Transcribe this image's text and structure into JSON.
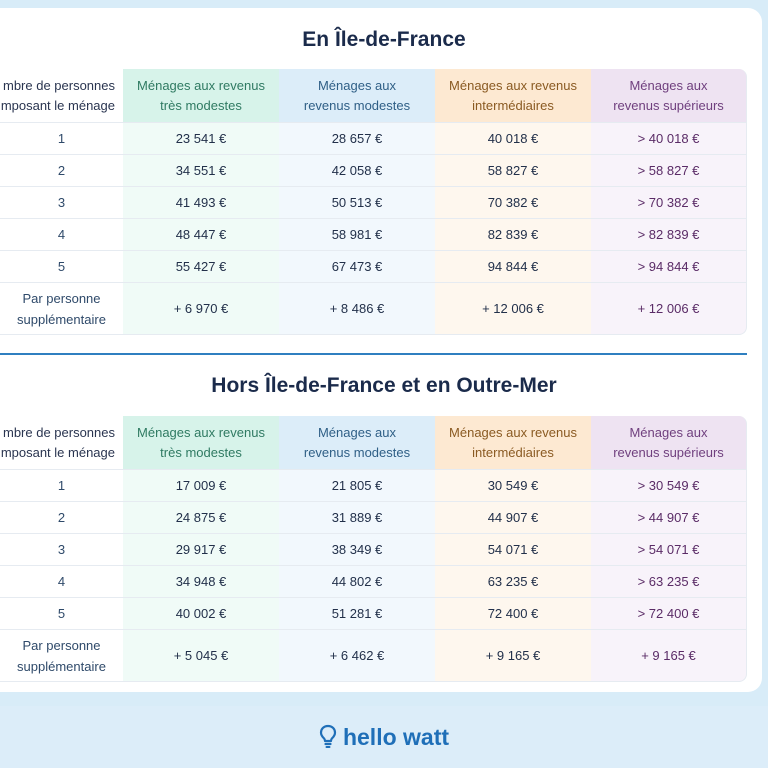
{
  "section1": {
    "title": "En Île-de-France",
    "headers": [
      "mbre de personnes\nmposant le ménage",
      "Ménages aux revenus\ntrès modestes",
      "Ménages aux\nrevenus modestes",
      "Ménages aux revenus\nintermédiaires",
      "Ménages aux\nrevenus supérieurs"
    ],
    "rows": [
      [
        "1",
        "23 541 €",
        "28 657 €",
        "40 018 €",
        "> 40 018 €"
      ],
      [
        "2",
        "34 551 €",
        "42 058 €",
        "58 827 €",
        "> 58 827 €"
      ],
      [
        "3",
        "41 493 €",
        "50 513 €",
        "70 382 €",
        "> 70 382 €"
      ],
      [
        "4",
        "48 447 €",
        "58 981 €",
        "82 839 €",
        "> 82 839 €"
      ],
      [
        "5",
        "55 427 €",
        "67 473 €",
        "94 844 €",
        "> 94 844 €"
      ],
      [
        "Par personne\nsupplémentaire",
        "+ 6 970 €",
        "+ 8 486 €",
        "+ 12 006 €",
        "+ 12 006 €"
      ]
    ]
  },
  "section2": {
    "title": "Hors Île-de-France et en Outre-Mer",
    "headers": [
      "mbre de personnes\nmposant le ménage",
      "Ménages aux revenus\ntrès modestes",
      "Ménages aux\nrevenus modestes",
      "Ménages aux revenus\nintermédiaires",
      "Ménages aux\nrevenus supérieurs"
    ],
    "rows": [
      [
        "1",
        "17 009 €",
        "21 805 €",
        "30 549 €",
        "> 30 549 €"
      ],
      [
        "2",
        "24 875 €",
        "31 889 €",
        "44 907 €",
        "> 44 907 €"
      ],
      [
        "3",
        "29 917 €",
        "38 349 €",
        "54 071 €",
        "> 54 071 €"
      ],
      [
        "4",
        "34 948 €",
        "44 802 €",
        "63 235 €",
        "> 63 235 €"
      ],
      [
        "5",
        "40 002 €",
        "51 281 €",
        "72 400 €",
        "> 72 400 €"
      ],
      [
        "Par personne\nsupplémentaire",
        "+ 5 045 €",
        "+ 6 462 €",
        "+ 9 165 €",
        "+ 9 165 €"
      ]
    ]
  },
  "brand": {
    "name": "hello watt",
    "icon": "lightbulb-icon",
    "color": "#1f6fb8"
  },
  "colors": {
    "very_modest": "#d7f3ea",
    "modest": "#dcedf9",
    "intermediate": "#fde9d2",
    "superior": "#eee3f2"
  }
}
